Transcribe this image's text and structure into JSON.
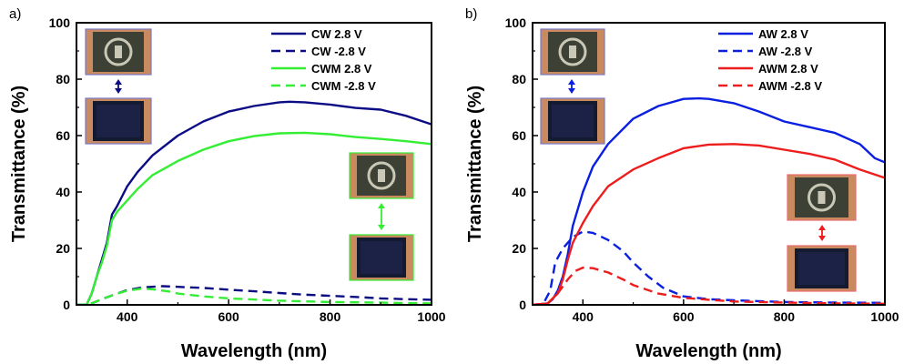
{
  "chart_data": [
    {
      "panel": "a)",
      "type": "line",
      "xlabel": "Wavelength (nm)",
      "ylabel": "Transmittance (%)",
      "xlim": [
        300,
        1000
      ],
      "ylim": [
        0,
        100
      ],
      "xticks": [
        "400",
        "600",
        "800",
        "1000"
      ],
      "yticks": [
        "0",
        "20",
        "40",
        "60",
        "80",
        "100"
      ],
      "legend_position": "top-right",
      "series": [
        {
          "name": "CW 2.8 V",
          "color": "#0b0b85",
          "dash": "solid",
          "x": [
            300,
            320,
            330,
            340,
            350,
            360,
            370,
            380,
            400,
            420,
            450,
            500,
            550,
            600,
            650,
            700,
            720,
            750,
            800,
            850,
            900,
            950,
            1000
          ],
          "y": [
            0,
            0,
            4,
            10,
            16,
            22,
            32,
            35,
            42,
            47,
            53,
            60,
            65,
            68.5,
            70.5,
            71.8,
            72,
            71.8,
            71,
            69.8,
            69.2,
            67,
            64
          ]
        },
        {
          "name": "CW -2.8 V",
          "color": "#0b0b85",
          "dash": "dashed",
          "x": [
            300,
            320,
            330,
            350,
            380,
            400,
            430,
            470,
            500,
            550,
            600,
            650,
            700,
            750,
            800,
            850,
            900,
            950,
            1000
          ],
          "y": [
            0,
            0,
            0.5,
            2,
            4,
            5.2,
            6.2,
            6.6,
            6.4,
            6,
            5.4,
            4.8,
            4.2,
            3.6,
            3.2,
            2.8,
            2.3,
            2,
            1.8
          ]
        },
        {
          "name": "CWM 2.8 V",
          "color": "#33ee33",
          "dash": "solid",
          "x": [
            300,
            320,
            330,
            340,
            350,
            360,
            370,
            380,
            400,
            420,
            450,
            500,
            550,
            600,
            650,
            700,
            750,
            800,
            850,
            900,
            950,
            1000
          ],
          "y": [
            0,
            0,
            4,
            10,
            15,
            21,
            30,
            33,
            37,
            41,
            46,
            51,
            55,
            58,
            59.8,
            60.8,
            61,
            60.5,
            59.5,
            58.8,
            58,
            57
          ]
        },
        {
          "name": "CWM -2.8 V",
          "color": "#33ee33",
          "dash": "dashed",
          "x": [
            300,
            320,
            330,
            350,
            380,
            400,
            430,
            450,
            480,
            500,
            550,
            600,
            700,
            800,
            900,
            950,
            1000
          ],
          "y": [
            0,
            0,
            0.5,
            2,
            4,
            5,
            5.8,
            5.5,
            4.8,
            4,
            3,
            2.3,
            1.5,
            1,
            0.8,
            0.6,
            0.5
          ]
        }
      ]
    },
    {
      "panel": "b)",
      "type": "line",
      "xlabel": "Wavelength (nm)",
      "ylabel": "Transmittance (%)",
      "xlim": [
        300,
        1000
      ],
      "ylim": [
        0,
        100
      ],
      "xticks": [
        "400",
        "600",
        "800",
        "1000"
      ],
      "yticks": [
        "0",
        "20",
        "40",
        "60",
        "80",
        "100"
      ],
      "legend_position": "top-right",
      "series": [
        {
          "name": "AW 2.8 V",
          "color": "#0a1fe0",
          "dash": "solid",
          "x": [
            300,
            330,
            340,
            350,
            360,
            370,
            380,
            400,
            420,
            450,
            500,
            550,
            600,
            630,
            650,
            700,
            750,
            800,
            850,
            900,
            950,
            980,
            1000
          ],
          "y": [
            0,
            0.5,
            2,
            5,
            10,
            18,
            28,
            40,
            49,
            57,
            66,
            70.5,
            73,
            73.2,
            73,
            71.5,
            68.5,
            65,
            63,
            61,
            57,
            52,
            50.5
          ]
        },
        {
          "name": "AW -2.8 V",
          "color": "#0a1fe0",
          "dash": "dashed",
          "x": [
            300,
            320,
            335,
            345,
            360,
            380,
            400,
            420,
            450,
            480,
            500,
            530,
            560,
            600,
            650,
            700,
            800,
            900,
            1000
          ],
          "y": [
            0,
            0,
            5,
            15,
            20,
            24,
            26,
            25.5,
            23,
            19,
            15,
            10,
            6,
            3,
            2,
            1.6,
            1,
            0.8,
            0.7
          ]
        },
        {
          "name": "AWM 2.8 V",
          "color": "#ee1d1d",
          "dash": "solid",
          "x": [
            300,
            330,
            350,
            360,
            370,
            380,
            400,
            420,
            450,
            500,
            550,
            600,
            650,
            700,
            750,
            800,
            850,
            900,
            950,
            1000
          ],
          "y": [
            0,
            0.5,
            4,
            9,
            16,
            22,
            29,
            35,
            42,
            48,
            52,
            55.5,
            56.8,
            57,
            56.5,
            55,
            53.5,
            51.5,
            48,
            45
          ]
        },
        {
          "name": "AWM -2.8 V",
          "color": "#ee1d1d",
          "dash": "dashed",
          "x": [
            300,
            330,
            350,
            370,
            385,
            400,
            420,
            450,
            480,
            500,
            550,
            600,
            650,
            700,
            800,
            900,
            1000
          ],
          "y": [
            0,
            0.5,
            4,
            9,
            12,
            13.2,
            13,
            11.5,
            9,
            7,
            4,
            2.5,
            1.8,
            1.2,
            0.8,
            0.5,
            0.4
          ]
        }
      ]
    }
  ],
  "insets": [
    {
      "panel": "a)",
      "arrow_color": "#0b0b85",
      "frame_color": "#7a7ac8",
      "states": [
        "transparent-device-photo",
        "dark-device-photo"
      ]
    },
    {
      "panel": "a)",
      "arrow_color": "#33ee33",
      "frame_color": "#33ee33",
      "states": [
        "transparent-device-photo",
        "dark-device-photo"
      ]
    },
    {
      "panel": "b)",
      "arrow_color": "#0a1fe0",
      "frame_color": "#7a7ac8",
      "states": [
        "transparent-device-photo",
        "dark-device-photo"
      ]
    },
    {
      "panel": "b)",
      "arrow_color": "#ee1d1d",
      "frame_color": "#ee6b6b",
      "states": [
        "transparent-device-photo",
        "dark-device-photo"
      ]
    }
  ]
}
